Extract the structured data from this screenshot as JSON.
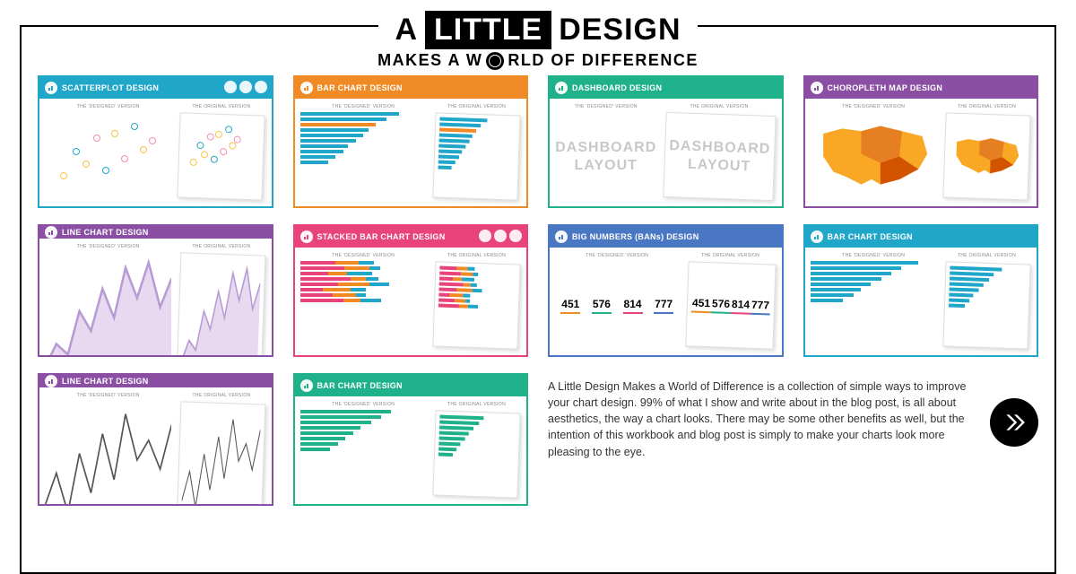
{
  "header": {
    "a": "A",
    "little": "LITTLE",
    "design": "DESIGN",
    "line2_prefix": "MAKES A W",
    "line2_suffix": "RLD OF DIFFERENCE"
  },
  "panel_labels": {
    "designed": "THE 'DESIGNED' VERSION",
    "original": "THE ORIGINAL VERSION"
  },
  "description": "A Little Design Makes a World of Difference is a collection of simple ways to improve your chart design. 99% of what I show and write about in the blog post, is all about aesthetics, the way a chart looks. There may be some other benefits as well, but the intention of this workbook and blog post is simply to make your charts look more pleasing to the eye.",
  "cards": [
    {
      "title": "SCATTERPLOT DESIGN",
      "color": "#1fa6c9",
      "type": "scatter",
      "nav": true,
      "scatter_points": [
        {
          "x": 12,
          "y": 68,
          "c": "#f5c542"
        },
        {
          "x": 22,
          "y": 40,
          "c": "#1fa6c9"
        },
        {
          "x": 30,
          "y": 55,
          "c": "#f5c542"
        },
        {
          "x": 38,
          "y": 25,
          "c": "#f08db2"
        },
        {
          "x": 45,
          "y": 62,
          "c": "#1fa6c9"
        },
        {
          "x": 52,
          "y": 20,
          "c": "#f5c542"
        },
        {
          "x": 60,
          "y": 48,
          "c": "#f08db2"
        },
        {
          "x": 68,
          "y": 12,
          "c": "#1fa6c9"
        },
        {
          "x": 75,
          "y": 38,
          "c": "#f5c542"
        },
        {
          "x": 82,
          "y": 28,
          "c": "#f08db2"
        }
      ]
    },
    {
      "title": "BAR CHART DESIGN",
      "color": "#f08a24",
      "type": "hbars",
      "bars": [
        78,
        68,
        60,
        54,
        50,
        44,
        38,
        34,
        28,
        22
      ],
      "bar_color": "#1fa6c9",
      "highlight_idx": 2,
      "highlight_color": "#f08a24"
    },
    {
      "title": "DASHBOARD DESIGN",
      "color": "#1fb28a",
      "type": "dashboard",
      "dash_text": "DASHBOARD LAYOUT"
    },
    {
      "title": "CHOROPLETH MAP DESIGN",
      "color": "#8a4fa3",
      "type": "map",
      "map_colors": [
        "#f9a825",
        "#e67e22",
        "#d35400",
        "#8a4fa3"
      ]
    },
    {
      "title": "LINE CHART DESIGN",
      "color": "#8a4fa3",
      "type": "line",
      "line_color": "#b89bd4",
      "fill_color": "#e6d9f0",
      "points": [
        12,
        30,
        22,
        55,
        40,
        72,
        50,
        88,
        65,
        92,
        58,
        80
      ]
    },
    {
      "title": "STACKED BAR CHART DESIGN",
      "color": "#e8437a",
      "type": "stacked",
      "nav": true,
      "rows": [
        [
          28,
          18,
          12
        ],
        [
          35,
          20,
          8
        ],
        [
          22,
          15,
          20
        ],
        [
          40,
          12,
          10
        ],
        [
          30,
          25,
          15
        ],
        [
          18,
          22,
          12
        ],
        [
          26,
          18,
          8
        ],
        [
          34,
          14,
          16
        ]
      ],
      "stack_colors": [
        "#e8437a",
        "#f08a24",
        "#1fa6c9"
      ]
    },
    {
      "title": "BIG NUMBERS (BANs) DESIGN",
      "color": "#4a77c4",
      "type": "bans",
      "numbers": [
        "451",
        "576",
        "814",
        "777"
      ],
      "underline_colors": [
        "#f08a24",
        "#1fb28a",
        "#e8437a",
        "#4a77c4"
      ]
    },
    {
      "title": "BAR CHART DESIGN",
      "color": "#1fa6c9",
      "type": "hbars",
      "bars": [
        85,
        72,
        64,
        56,
        48,
        40,
        34,
        26
      ],
      "bar_color": "#1fa6c9"
    },
    {
      "title": "LINE CHART DESIGN",
      "color": "#8a4fa3",
      "type": "line_thin",
      "line_color": "#555",
      "points": [
        20,
        45,
        15,
        60,
        30,
        75,
        40,
        90,
        55,
        70,
        48,
        82
      ]
    },
    {
      "title": "BAR CHART DESIGN",
      "color": "#1fb28a",
      "type": "hbars",
      "bars": [
        72,
        64,
        56,
        48,
        42,
        36,
        30,
        24
      ],
      "bar_color": "#1fb28a"
    }
  ],
  "styling": {
    "page_bg": "#ffffff",
    "frame_color": "#000000",
    "card_body_bg": "#ffffff",
    "paper_border": "#dddddd",
    "label_fontsize": 5,
    "header_fontsize": 34,
    "subheader_fontsize": 18,
    "desc_fontsize": 12.5
  }
}
